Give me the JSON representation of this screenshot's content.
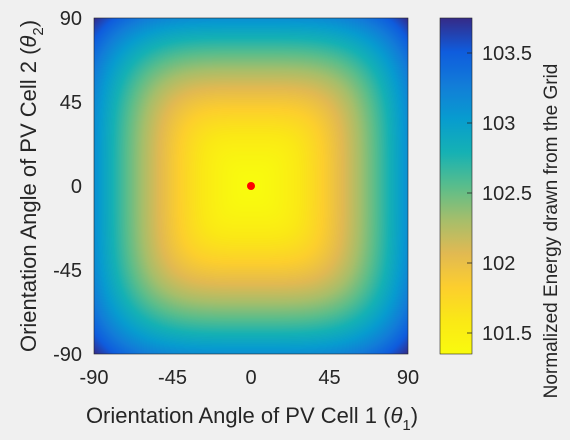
{
  "chart_data": {
    "type": "heatmap",
    "xlabel": "Orientation Angle of PV Cell 1 (θ1)",
    "ylabel": "Orientation Angle of PV Cell 2 (θ2)",
    "xlabel_parts": {
      "main": "Orientation Angle of PV Cell 1 (",
      "sym": "θ",
      "sub": "1",
      "close": ")"
    },
    "ylabel_parts": {
      "main": "Orientation Angle of PV Cell 2 (",
      "sym": "θ",
      "sub": "2",
      "close": ")"
    },
    "xlim": [
      -90,
      90
    ],
    "ylim": [
      -90,
      90
    ],
    "xticks": [
      -90,
      -45,
      0,
      45,
      90
    ],
    "yticks": [
      -90,
      -45,
      0,
      45,
      90
    ],
    "xtick_labels": [
      "-90",
      "-45",
      "0",
      "45",
      "90"
    ],
    "ytick_labels": [
      "-90",
      "-45",
      "0",
      "45",
      "90"
    ],
    "colorbar": {
      "label": "Normalized Energy drawn from the Grid",
      "clim": [
        101.35,
        103.75
      ],
      "ticks": [
        101.5,
        102,
        102.5,
        103,
        103.5
      ],
      "tick_labels": [
        "101.5",
        "102",
        "102.5",
        "103",
        "103.5"
      ],
      "colormap": "parula"
    },
    "surface": {
      "min_value": 101.35,
      "max_value": 103.75,
      "min_location": [
        0,
        0
      ]
    },
    "marker": {
      "x": 0,
      "y": 0,
      "color": "#ff0000"
    },
    "grid": false
  }
}
